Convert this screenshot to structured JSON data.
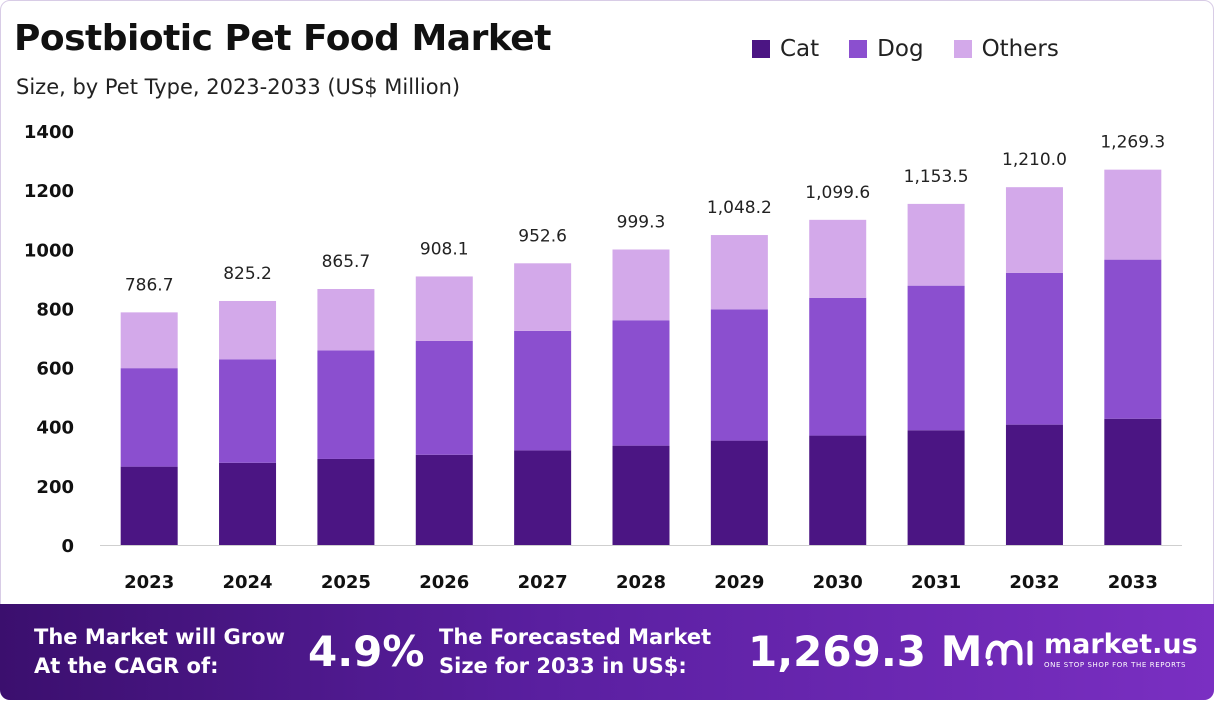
{
  "chart_data": {
    "type": "bar",
    "stacked": true,
    "title": "Postbiotic Pet Food Market",
    "subtitle": "Size, by Pet Type, 2023-2033 (US$ Million)",
    "categories": [
      "2023",
      "2024",
      "2025",
      "2026",
      "2027",
      "2028",
      "2029",
      "2030",
      "2031",
      "2032",
      "2033"
    ],
    "series": [
      {
        "name": "Cat",
        "color": "#4b1583",
        "values": [
          265,
          278,
          291,
          305,
          320,
          336,
          353,
          370,
          388,
          407,
          427
        ]
      },
      {
        "name": "Dog",
        "color": "#8b4fcf",
        "values": [
          333,
          350,
          367,
          385,
          404,
          424,
          444,
          466,
          489,
          513,
          538
        ]
      },
      {
        "name": "Others",
        "color": "#d3a9ea",
        "values": [
          188.7,
          197.2,
          207.7,
          218.1,
          228.6,
          239.3,
          251.2,
          263.6,
          276.5,
          290.0,
          304.3
        ]
      }
    ],
    "totals": [
      "786.7",
      "825.2",
      "865.7",
      "908.1",
      "952.6",
      "999.3",
      "1,048.2",
      "1,099.6",
      "1,153.5",
      "1,210.0",
      "1,269.3"
    ],
    "yticks": [
      "0",
      "200",
      "400",
      "600",
      "800",
      "1000",
      "1200",
      "1400"
    ],
    "ylim": [
      0,
      1400
    ],
    "legend_position": "top-right",
    "grid": false
  },
  "legend": [
    {
      "label": "Cat",
      "color": "#4b1583"
    },
    {
      "label": "Dog",
      "color": "#8b4fcf"
    },
    {
      "label": "Others",
      "color": "#d3a9ea"
    }
  ],
  "footer": {
    "cagr_line1": "The Market will Grow",
    "cagr_line2": "At the CAGR of:",
    "cagr_value": "4.9%",
    "forecast_line1": "The Forecasted Market",
    "forecast_line2": "Size for 2033 in US$:",
    "forecast_value": "1,269.3 M",
    "brand_name": "market.us",
    "brand_tagline": "ONE STOP SHOP FOR THE REPORTS"
  }
}
